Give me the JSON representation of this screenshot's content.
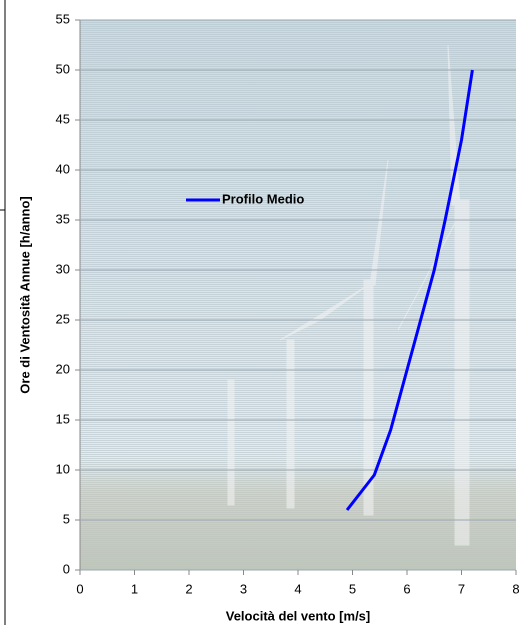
{
  "chart_data": {
    "type": "line",
    "xlabel": "Velocità del vento [m/s]",
    "ylabel": "Ore di Ventosità Annue [h/anno]",
    "xlim": [
      0,
      8
    ],
    "xticks": [
      0,
      1,
      2,
      3,
      4,
      5,
      6,
      7,
      8
    ],
    "ylim": [
      0,
      55
    ],
    "yticks": [
      0,
      5,
      10,
      15,
      20,
      25,
      30,
      35,
      40,
      45,
      50,
      55
    ],
    "grid": true,
    "series": [
      {
        "name": "Profilo Medio",
        "color": "#0000ff",
        "x": [
          4.9,
          5.4,
          5.7,
          5.9,
          6.1,
          6.3,
          6.5,
          6.7,
          6.85,
          7.0,
          7.1,
          7.2
        ],
        "values": [
          6,
          9.5,
          14,
          18,
          22,
          26,
          30,
          35,
          39,
          43,
          46.5,
          50
        ]
      }
    ]
  }
}
